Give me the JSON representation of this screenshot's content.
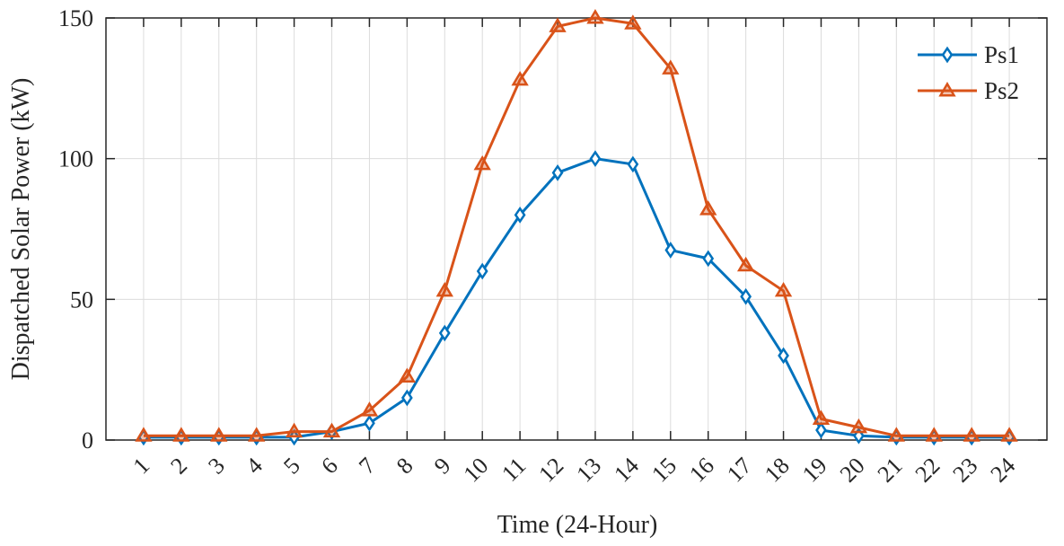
{
  "chart_data": {
    "type": "line",
    "xlabel": "Time (24-Hour)",
    "ylabel": "Dispatched Solar Power (kW)",
    "x": [
      1,
      2,
      3,
      4,
      5,
      6,
      7,
      8,
      9,
      10,
      11,
      12,
      13,
      14,
      15,
      16,
      17,
      18,
      19,
      20,
      21,
      22,
      23,
      24
    ],
    "x_tick_labels": [
      "1",
      "2",
      "3",
      "4",
      "5",
      "6",
      "7",
      "8",
      "9",
      "10",
      "11",
      "12",
      "13",
      "14",
      "15",
      "16",
      "17",
      "18",
      "19",
      "20",
      "21",
      "22",
      "23",
      "24"
    ],
    "xlim": [
      0,
      25
    ],
    "ylim": [
      0,
      150
    ],
    "y_ticks": [
      0,
      50,
      100,
      150
    ],
    "y_tick_labels": [
      "0",
      "50",
      "100",
      "150"
    ],
    "grid": true,
    "legend_position": "top-right",
    "series": [
      {
        "name": "Ps1",
        "color": "#0072BD",
        "marker": "diamond",
        "values": [
          1,
          1,
          1,
          1,
          1,
          3,
          6,
          15,
          38,
          60,
          80,
          95,
          100,
          98,
          67.5,
          64.5,
          51,
          30,
          3.5,
          1.5,
          1,
          1,
          1,
          1
        ]
      },
      {
        "name": "Ps2",
        "color": "#D95319",
        "marker": "triangle",
        "values": [
          1.5,
          1.5,
          1.5,
          1.5,
          3,
          3,
          10.5,
          22.5,
          53,
          98,
          128,
          147,
          150,
          148,
          132,
          82,
          62,
          53,
          7.5,
          4.5,
          1.5,
          1.5,
          1.5,
          1.5
        ]
      }
    ]
  }
}
